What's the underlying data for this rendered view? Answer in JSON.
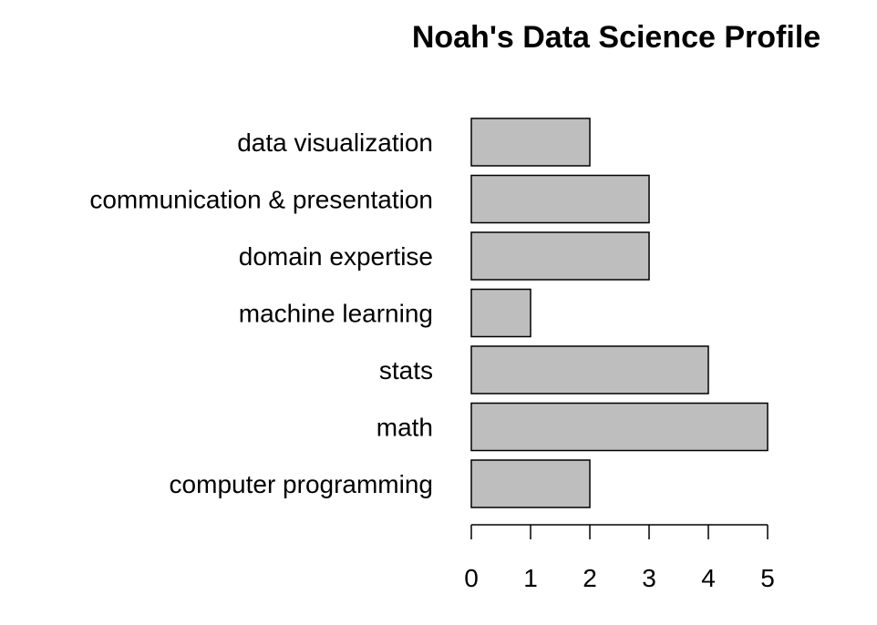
{
  "chart_data": {
    "type": "bar",
    "orientation": "horizontal",
    "title": "Noah's Data Science Profile",
    "xlabel": "",
    "ylabel": "",
    "categories": [
      "computer programming",
      "math",
      "stats",
      "machine learning",
      "domain expertise",
      "communication & presentation",
      "data visualization"
    ],
    "values": [
      2,
      5,
      4,
      1,
      3,
      3,
      2
    ],
    "xlim": [
      0,
      5
    ],
    "ticks": [
      0,
      1,
      2,
      3,
      4,
      5
    ],
    "bar_color": "#bebebe",
    "bar_border_color": "#000000",
    "grid": false,
    "legend": "none"
  }
}
